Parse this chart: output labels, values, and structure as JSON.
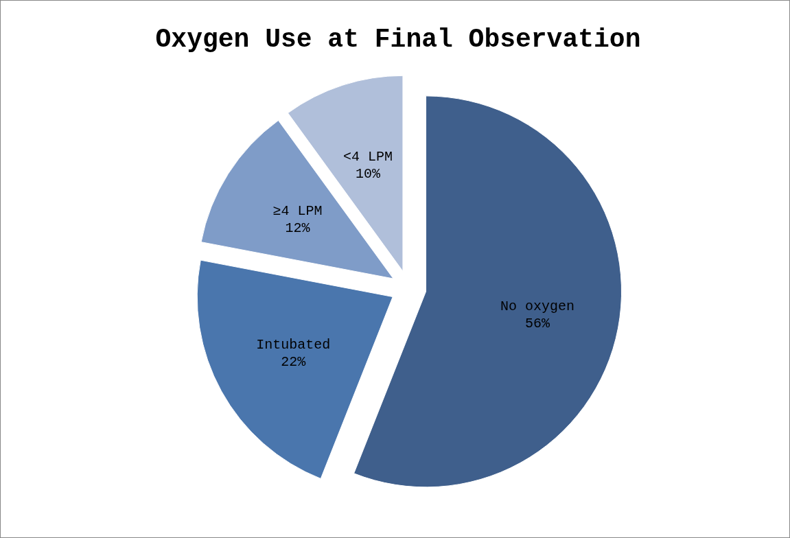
{
  "chart_data": {
    "type": "pie",
    "title": "Oxygen Use at Final Observation",
    "categories": [
      "No oxygen",
      "Intubated",
      "≥4 LPM",
      "<4 LPM"
    ],
    "values": [
      56,
      22,
      12,
      10
    ],
    "colors": [
      "#3f5f8c",
      "#4a76ad",
      "#7f9cc8",
      "#b0bfda"
    ],
    "value_labels": [
      "56%",
      "22%",
      "12%",
      "10%"
    ]
  }
}
